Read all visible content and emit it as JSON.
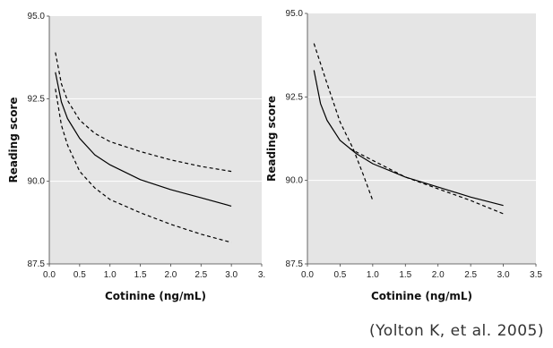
{
  "citation": "(Yolton K, et al. 2005)",
  "colors": {
    "plot_bg": "#e5e5e5",
    "grid": "#ffffff",
    "line": "#000000"
  },
  "chart_data": [
    {
      "type": "line",
      "xlabel": "Cotinine (ng/mL)",
      "ylabel": "Reading score",
      "xlim": [
        0.0,
        3.5
      ],
      "ylim": [
        87.5,
        95.0
      ],
      "x_tick_labels": [
        "0.0",
        "0.5",
        "1.0",
        "1.5",
        "2.0",
        "2.5",
        "3.0",
        "3."
      ],
      "y_tick_labels": [
        "87.5",
        "90.0",
        "92.5",
        "95.0"
      ],
      "grid": true,
      "series": [
        {
          "style": "solid",
          "x": [
            0.1,
            0.2,
            0.3,
            0.5,
            0.75,
            1.0,
            1.5,
            2.0,
            2.5,
            3.0
          ],
          "y": [
            93.3,
            92.4,
            91.9,
            91.3,
            90.8,
            90.5,
            90.05,
            89.75,
            89.5,
            89.25
          ]
        },
        {
          "style": "dashed",
          "x": [
            0.1,
            0.2,
            0.3,
            0.5,
            0.75,
            1.0,
            1.5,
            2.0,
            2.5,
            3.0
          ],
          "y": [
            93.9,
            92.95,
            92.45,
            91.85,
            91.45,
            91.2,
            90.9,
            90.65,
            90.45,
            90.3
          ]
        },
        {
          "style": "dashed",
          "x": [
            0.1,
            0.2,
            0.3,
            0.5,
            0.75,
            1.0,
            1.5,
            2.0,
            2.5,
            3.0
          ],
          "y": [
            92.8,
            91.7,
            91.1,
            90.3,
            89.8,
            89.45,
            89.05,
            88.7,
            88.4,
            88.15
          ]
        }
      ]
    },
    {
      "type": "line",
      "xlabel": "Cotinine (ng/mL)",
      "ylabel": "Reading score",
      "xlim": [
        0.0,
        3.5
      ],
      "ylim": [
        87.5,
        95.0
      ],
      "x_tick_labels": [
        "0.0",
        "0.5",
        "1.0",
        "1.5",
        "2.0",
        "2.5",
        "3.0",
        "3.5"
      ],
      "y_tick_labels": [
        "87.5",
        "90.0",
        "92.5",
        "95.0"
      ],
      "grid": true,
      "series": [
        {
          "style": "solid",
          "x": [
            0.1,
            0.2,
            0.3,
            0.5,
            0.75,
            1.0,
            1.5,
            2.0,
            2.5,
            3.0
          ],
          "y": [
            93.3,
            92.3,
            91.8,
            91.2,
            90.8,
            90.5,
            90.1,
            89.8,
            89.5,
            89.25
          ]
        },
        {
          "style": "dashed",
          "x": [
            0.1,
            0.3,
            0.5,
            0.7,
            0.85,
            1.0
          ],
          "y": [
            94.1,
            92.9,
            91.75,
            90.95,
            90.2,
            89.4
          ]
        },
        {
          "style": "dashed",
          "x": [
            0.65,
            1.0,
            1.5,
            2.0,
            2.5,
            3.0
          ],
          "y": [
            90.95,
            90.6,
            90.1,
            89.75,
            89.4,
            89.0
          ]
        }
      ]
    }
  ]
}
